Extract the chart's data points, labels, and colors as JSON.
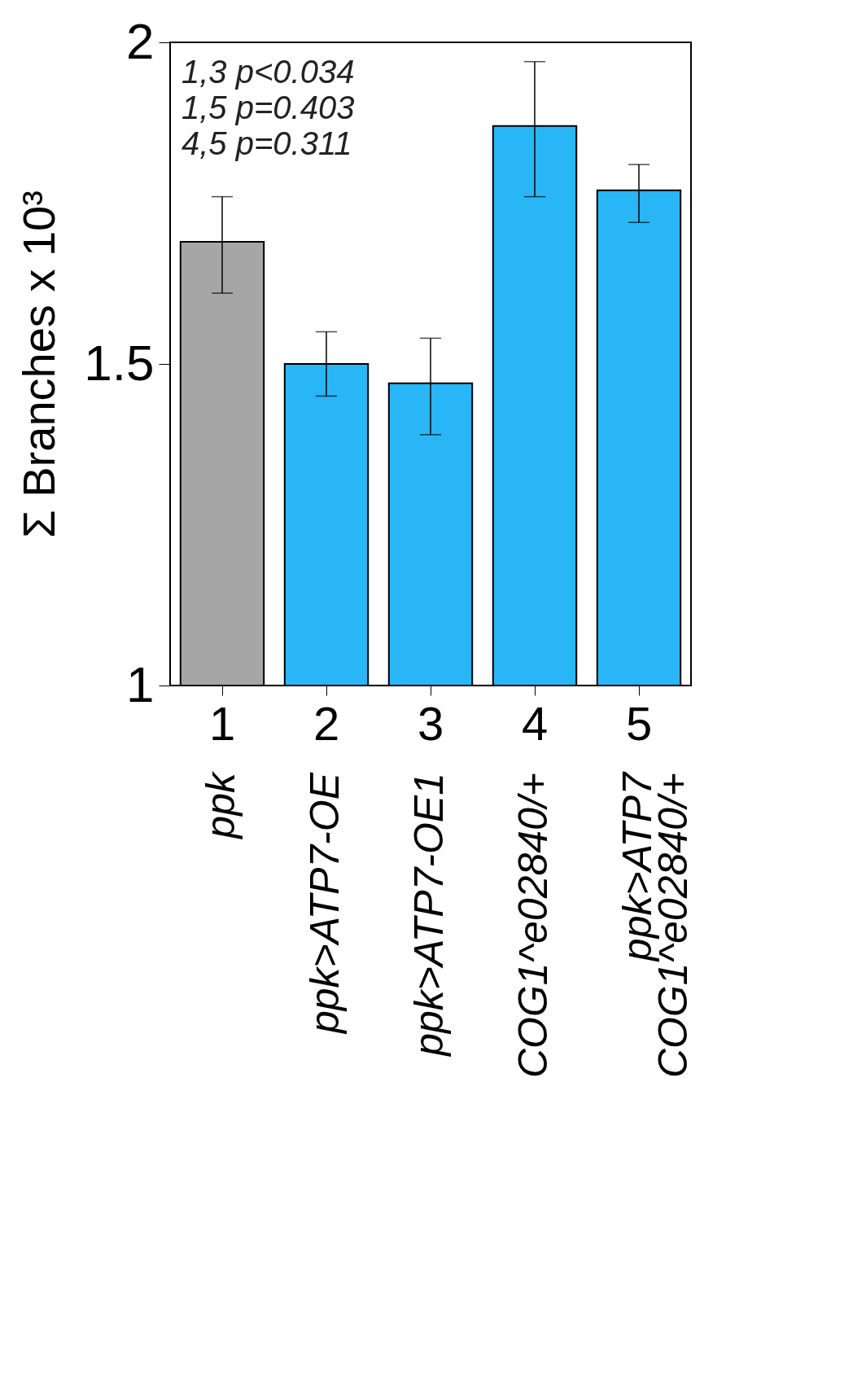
{
  "chart_data": {
    "type": "bar",
    "ylabel": "Σ Branches x 10³",
    "categories": [
      "1",
      "2",
      "3",
      "4",
      "5"
    ],
    "values": [
      1.69,
      1.5,
      1.47,
      1.87,
      1.77
    ],
    "errors": [
      [
        1.61,
        1.76
      ],
      [
        1.45,
        1.55
      ],
      [
        1.39,
        1.54
      ],
      [
        1.76,
        1.97
      ],
      [
        1.72,
        1.81
      ]
    ],
    "colors": [
      "#a6a6a6",
      "#29b6f6",
      "#29b6f6",
      "#29b6f6",
      "#29b6f6"
    ],
    "ylim": [
      1,
      2
    ],
    "yticks": [
      1,
      1.5,
      2
    ],
    "grid": false,
    "annotations": [
      "1,3 p<0.034",
      "1,5 p=0.403",
      "4,5 p=0.311",
      "ppk",
      "ppk>ATP7-OE",
      "ppk>ATP7-OE1",
      "COG1^e02840/+",
      "ppk>ATP7\nCOG1^e02840/+"
    ]
  }
}
